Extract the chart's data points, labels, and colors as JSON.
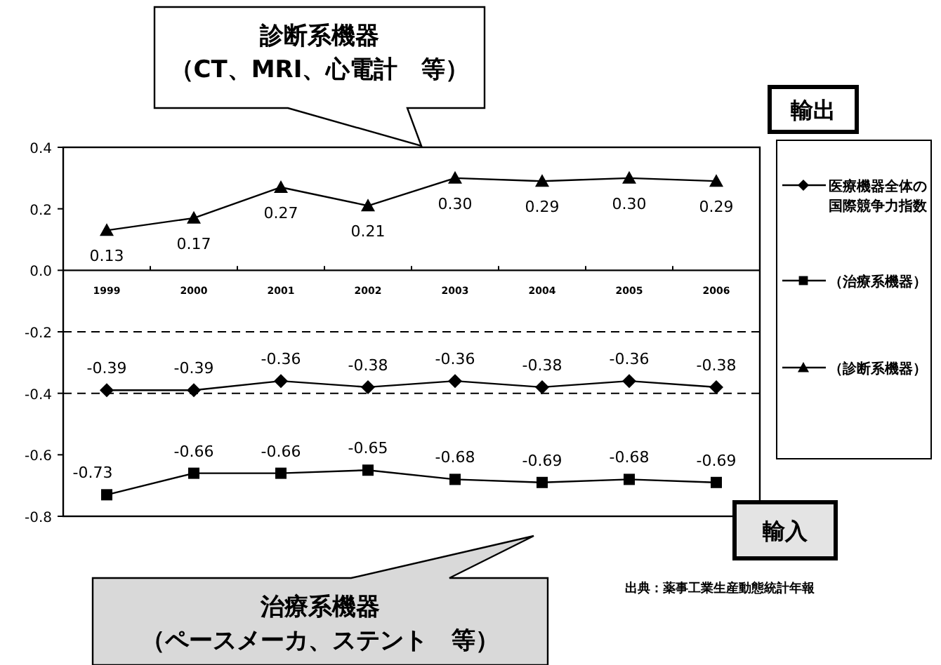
{
  "chart_data": {
    "type": "line",
    "categories": [
      "1999",
      "2000",
      "2001",
      "2002",
      "2003",
      "2004",
      "2005",
      "2006"
    ],
    "series": [
      {
        "name": "医療機器全体の国際競争力指数",
        "color": "#000000",
        "marker": "diamond",
        "values": [
          -0.39,
          -0.39,
          -0.36,
          -0.38,
          -0.36,
          -0.38,
          -0.36,
          -0.38
        ],
        "value_labels": [
          "-0.39",
          "-0.39",
          "-0.36",
          "-0.38",
          "-0.36",
          "-0.38",
          "-0.36",
          "-0.38"
        ]
      },
      {
        "name": "（治療系機器）",
        "color": "#000000",
        "marker": "square",
        "values": [
          -0.73,
          -0.66,
          -0.66,
          -0.65,
          -0.68,
          -0.69,
          -0.68,
          -0.69
        ],
        "value_labels": [
          "-0.73",
          "-0.66",
          "-0.66",
          "-0.65",
          "-0.68",
          "-0.69",
          "-0.68",
          "-0.69"
        ]
      },
      {
        "name": "（診断系機器）",
        "color": "#000000",
        "marker": "triangle",
        "values": [
          0.13,
          0.17,
          0.27,
          0.21,
          0.3,
          0.29,
          0.3,
          0.29
        ],
        "value_labels": [
          "0.13",
          "0.17",
          "0.27",
          "0.21",
          "0.30",
          "0.29",
          "0.30",
          "0.29"
        ]
      }
    ],
    "ylim": [
      -0.8,
      0.4
    ],
    "yticks": [
      0.4,
      0.2,
      {
        "value": 0,
        "label": "0.0"
      },
      -0.2,
      -0.4,
      -0.6,
      -0.8
    ],
    "ref_lines": [
      {
        "axis": "y",
        "value": -0.2,
        "line_style": "dashed"
      },
      {
        "axis": "y",
        "value": -0.4,
        "line_style": "dashed"
      }
    ],
    "grid": false,
    "legend": "right",
    "line_style": "solid",
    "annotations": [
      "診断系機器",
      "（CT、MRI、心電計　等）",
      "輸出",
      "輸入",
      "出典：薬事工業生産動態統計年報",
      "治療系機器",
      "（ペースメーカ、ステント　等）"
    ]
  }
}
